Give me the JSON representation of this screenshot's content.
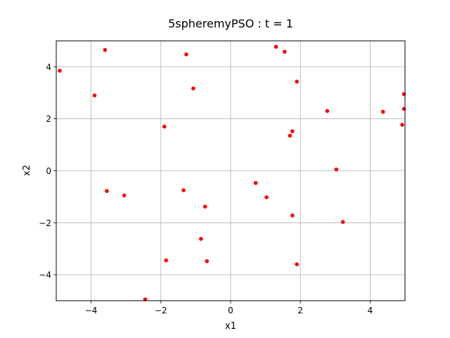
{
  "chart_data": {
    "type": "scatter",
    "title": "5spheremyPSO : t =  1",
    "xlabel": "x1",
    "ylabel": "x2",
    "xlim": [
      -5,
      5
    ],
    "ylim": [
      -5,
      5
    ],
    "xticks": [
      -4,
      -2,
      0,
      2,
      4
    ],
    "yticks": [
      -4,
      -2,
      0,
      2,
      4
    ],
    "grid": true,
    "marker_color": "#ff0000",
    "grid_color": "#b0b0b0",
    "points": [
      {
        "x": -4.9,
        "y": 3.85
      },
      {
        "x": -3.9,
        "y": 2.9
      },
      {
        "x": -3.6,
        "y": 4.65
      },
      {
        "x": -3.55,
        "y": -0.78
      },
      {
        "x": -3.05,
        "y": -0.95
      },
      {
        "x": -2.45,
        "y": -4.95
      },
      {
        "x": -1.9,
        "y": 1.7
      },
      {
        "x": -1.85,
        "y": -3.45
      },
      {
        "x": -1.35,
        "y": -0.75
      },
      {
        "x": -1.27,
        "y": 4.48
      },
      {
        "x": -1.07,
        "y": 3.17
      },
      {
        "x": -0.85,
        "y": -2.62
      },
      {
        "x": -0.73,
        "y": -1.38
      },
      {
        "x": -0.68,
        "y": -3.48
      },
      {
        "x": 0.72,
        "y": -0.47
      },
      {
        "x": 1.03,
        "y": -1.02
      },
      {
        "x": 1.3,
        "y": 4.77
      },
      {
        "x": 1.55,
        "y": 4.58
      },
      {
        "x": 1.7,
        "y": 1.35
      },
      {
        "x": 1.77,
        "y": 1.52
      },
      {
        "x": 1.77,
        "y": -1.72
      },
      {
        "x": 1.9,
        "y": 3.43
      },
      {
        "x": 1.9,
        "y": -3.6
      },
      {
        "x": 2.77,
        "y": 2.3
      },
      {
        "x": 3.03,
        "y": 0.05
      },
      {
        "x": 3.22,
        "y": -1.97
      },
      {
        "x": 4.37,
        "y": 2.27
      },
      {
        "x": 4.92,
        "y": 1.77
      },
      {
        "x": 4.97,
        "y": 2.38
      },
      {
        "x": 4.97,
        "y": 2.95
      }
    ]
  }
}
